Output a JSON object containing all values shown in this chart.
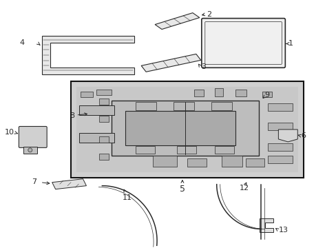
{
  "background_color": "#ffffff",
  "line_color": "#2a2a2a",
  "box_fill": "#d8d8d8",
  "figsize": [
    4.89,
    3.6
  ],
  "dpi": 100
}
